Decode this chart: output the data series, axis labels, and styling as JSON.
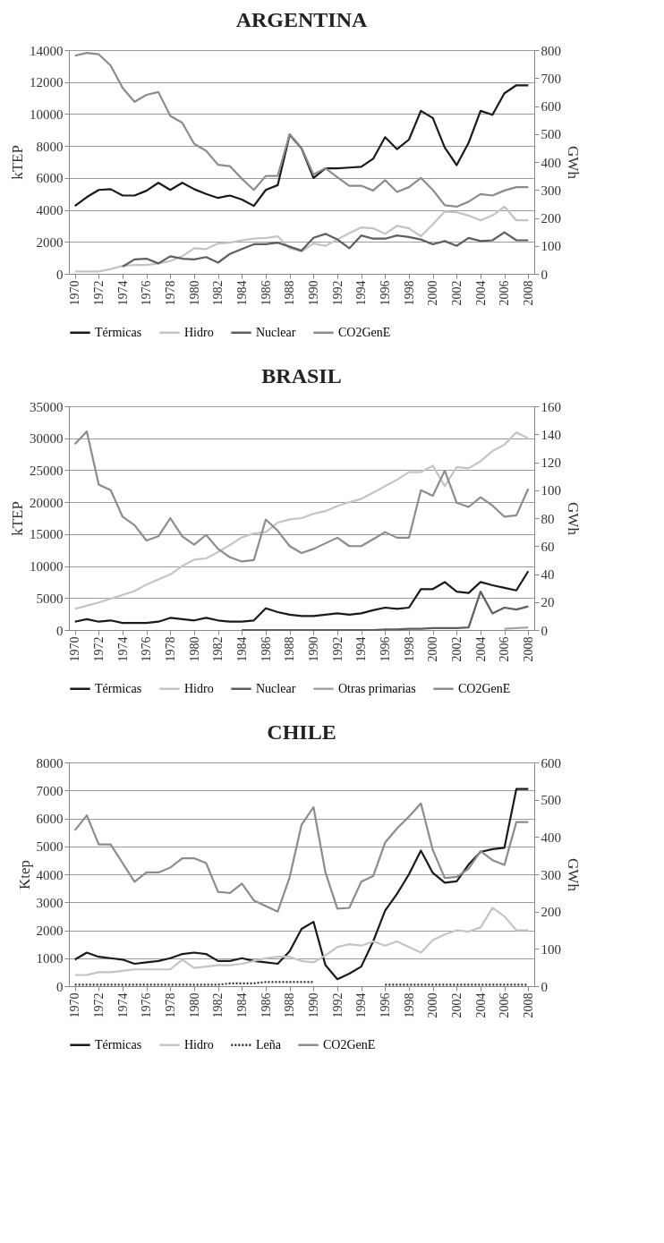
{
  "chart_data": [
    {
      "type": "line",
      "title": "ARGENTINA",
      "ylabel": "kTEP",
      "y2label": "GWh",
      "legend": "bottom",
      "grid": "y",
      "line_style": "solid",
      "x": [
        1970,
        1971,
        1972,
        1973,
        1974,
        1975,
        1976,
        1977,
        1978,
        1979,
        1980,
        1981,
        1982,
        1983,
        1984,
        1985,
        1986,
        1987,
        1988,
        1989,
        1990,
        1991,
        1992,
        1993,
        1994,
        1995,
        1996,
        1997,
        1998,
        1999,
        2000,
        2001,
        2002,
        2003,
        2004,
        2005,
        2006,
        2007,
        2008
      ],
      "xlim": [
        1969.5,
        2008.5
      ],
      "xticks": [
        1970,
        1972,
        1974,
        1976,
        1978,
        1980,
        1982,
        1984,
        1986,
        1988,
        1990,
        1992,
        1994,
        1996,
        1998,
        2000,
        2002,
        2004,
        2006,
        2008
      ],
      "ylim": [
        0,
        14000
      ],
      "yticks": [
        0,
        2000,
        4000,
        6000,
        8000,
        10000,
        12000,
        14000
      ],
      "y2lim": [
        0,
        800
      ],
      "y2ticks": [
        0,
        100,
        200,
        300,
        400,
        500,
        600,
        700,
        800
      ],
      "series": [
        {
          "name": "Térmicas",
          "color": "#1a1a1a",
          "values": [
            4250,
            4800,
            5250,
            5300,
            4900,
            4900,
            5200,
            5700,
            5250,
            5700,
            5300,
            5000,
            4750,
            4900,
            4650,
            4250,
            5250,
            5550,
            8700,
            7850,
            6000,
            6600,
            6600,
            6650,
            6700,
            7200,
            8550,
            7800,
            8400,
            10200,
            9750,
            7900,
            6800,
            8200,
            10200,
            9950,
            11300,
            11800,
            11800
          ]
        },
        {
          "name": "Hidro",
          "color": "#c4c4c4",
          "values": [
            150,
            150,
            150,
            300,
            500,
            550,
            550,
            650,
            800,
            1100,
            1600,
            1550,
            1900,
            1950,
            2100,
            2200,
            2250,
            2350,
            1600,
            1400,
            1900,
            1750,
            2150,
            2550,
            2900,
            2850,
            2500,
            3000,
            2850,
            2350,
            3100,
            3900,
            3850,
            3650,
            3350,
            3650,
            4200,
            3350,
            3350
          ]
        },
        {
          "name": "Nuclear",
          "color": "#5e5e5e",
          "values": [
            null,
            null,
            null,
            null,
            450,
            900,
            950,
            650,
            1100,
            950,
            900,
            1050,
            700,
            1250,
            1550,
            1850,
            1850,
            1950,
            1700,
            1450,
            2250,
            2500,
            2150,
            1600,
            2400,
            2200,
            2200,
            2400,
            2300,
            2150,
            1850,
            2050,
            1750,
            2250,
            2050,
            2100,
            2600,
            2100,
            2100
          ]
        },
        {
          "name": "CO2GenE",
          "color": "#8c8c8c",
          "axis": "y2",
          "values": [
            780,
            790,
            785,
            745,
            665,
            615,
            640,
            650,
            565,
            540,
            465,
            440,
            390,
            385,
            340,
            300,
            350,
            350,
            500,
            450,
            355,
            378,
            345,
            315,
            315,
            298,
            335,
            293,
            310,
            343,
            300,
            245,
            240,
            258,
            285,
            280,
            298,
            310,
            310
          ]
        }
      ]
    },
    {
      "type": "line",
      "title": "BRASIL",
      "ylabel": "kTEP",
      "y2label": "GWh",
      "legend": "bottom",
      "grid": "y",
      "line_style": "solid",
      "x": [
        1970,
        1971,
        1972,
        1973,
        1974,
        1975,
        1976,
        1977,
        1978,
        1979,
        1980,
        1981,
        1982,
        1983,
        1984,
        1985,
        1986,
        1987,
        1988,
        1989,
        1990,
        1991,
        1992,
        1993,
        1994,
        1995,
        1996,
        1997,
        1998,
        1999,
        2000,
        2001,
        2002,
        2003,
        2004,
        2005,
        2006,
        2007,
        2008
      ],
      "xlim": [
        1969.5,
        2008.5
      ],
      "xticks": [
        1970,
        1972,
        1974,
        1976,
        1978,
        1980,
        1982,
        1984,
        1986,
        1988,
        1990,
        1992,
        1994,
        1996,
        1998,
        2000,
        2002,
        2004,
        2006,
        2008
      ],
      "ylim": [
        0,
        35000
      ],
      "yticks": [
        0,
        5000,
        10000,
        15000,
        20000,
        25000,
        30000,
        35000
      ],
      "y2lim": [
        0,
        160
      ],
      "y2ticks": [
        0,
        20,
        40,
        60,
        80,
        100,
        120,
        140,
        160
      ],
      "series": [
        {
          "name": "Térmicas",
          "color": "#1a1a1a",
          "values": [
            1300,
            1700,
            1300,
            1500,
            1100,
            1100,
            1100,
            1300,
            1900,
            1700,
            1500,
            1900,
            1500,
            1300,
            1300,
            1500,
            3400,
            2800,
            2400,
            2200,
            2200,
            2400,
            2600,
            2400,
            2600,
            3100,
            3500,
            3300,
            3500,
            6400,
            6400,
            7500,
            6000,
            5800,
            7500,
            7000,
            6600,
            6200,
            9200
          ]
        },
        {
          "name": "Hidro",
          "color": "#c4c4c4",
          "values": [
            3300,
            3800,
            4300,
            4900,
            5500,
            6100,
            7100,
            7900,
            8700,
            10000,
            11000,
            11200,
            12200,
            13300,
            14500,
            15100,
            15300,
            16800,
            17300,
            17500,
            18200,
            18600,
            19400,
            20000,
            20500,
            21500,
            22500,
            23500,
            24700,
            24700,
            25700,
            22500,
            25500,
            25300,
            26400,
            28000,
            29000,
            30900,
            30000
          ]
        },
        {
          "name": "Nuclear",
          "color": "#5e5e5e",
          "values": [
            null,
            null,
            null,
            null,
            null,
            null,
            null,
            null,
            null,
            null,
            null,
            null,
            null,
            null,
            0,
            0,
            0,
            0,
            0,
            0,
            0,
            0,
            0,
            0,
            0,
            0,
            100,
            100,
            200,
            200,
            300,
            300,
            300,
            400,
            6000,
            2600,
            3500,
            3200,
            3700
          ]
        },
        {
          "name": "Otras primarias",
          "color": "#a6a6a6",
          "values": [
            null,
            null,
            null,
            null,
            null,
            null,
            null,
            null,
            null,
            null,
            null,
            null,
            null,
            null,
            null,
            null,
            null,
            null,
            null,
            null,
            null,
            null,
            null,
            null,
            null,
            null,
            null,
            null,
            null,
            null,
            null,
            null,
            null,
            null,
            null,
            null,
            200,
            300,
            400
          ]
        },
        {
          "name": "CO2GenE",
          "color": "#8c8c8c",
          "axis": "y2",
          "values": [
            133,
            142,
            104,
            100,
            81,
            75,
            64,
            67,
            80,
            67,
            61,
            68,
            58,
            52,
            49,
            50,
            79,
            71,
            60,
            55,
            58,
            62,
            66,
            60,
            60,
            65,
            70,
            66,
            66,
            100,
            96,
            114,
            91,
            88,
            95,
            89,
            81,
            82,
            101
          ]
        }
      ]
    },
    {
      "type": "line",
      "title": "CHILE",
      "ylabel": "Ktep",
      "y2label": "GWh",
      "legend": "bottom",
      "grid": "y",
      "line_style": "solid",
      "x": [
        1970,
        1971,
        1972,
        1973,
        1974,
        1975,
        1976,
        1977,
        1978,
        1979,
        1980,
        1981,
        1982,
        1983,
        1984,
        1985,
        1986,
        1987,
        1988,
        1989,
        1990,
        1991,
        1992,
        1993,
        1994,
        1995,
        1996,
        1997,
        1998,
        1999,
        2000,
        2001,
        2002,
        2003,
        2004,
        2005,
        2006,
        2007,
        2008
      ],
      "xlim": [
        1969.5,
        2008.5
      ],
      "xticks": [
        1970,
        1972,
        1974,
        1976,
        1978,
        1980,
        1982,
        1984,
        1986,
        1988,
        1990,
        1992,
        1994,
        1996,
        1998,
        2000,
        2002,
        2004,
        2006,
        2008
      ],
      "ylim": [
        0,
        8000
      ],
      "yticks": [
        0,
        1000,
        2000,
        3000,
        4000,
        5000,
        6000,
        7000,
        8000
      ],
      "y2lim": [
        0,
        600
      ],
      "y2ticks": [
        0,
        100,
        200,
        300,
        400,
        500,
        600
      ],
      "series": [
        {
          "name": "Térmicas",
          "color": "#1a1a1a",
          "values": [
            950,
            1200,
            1050,
            1000,
            950,
            800,
            850,
            900,
            1000,
            1150,
            1200,
            1150,
            900,
            900,
            1000,
            900,
            850,
            800,
            1250,
            2050,
            2300,
            750,
            250,
            450,
            700,
            1600,
            2700,
            3300,
            4000,
            4850,
            4050,
            3700,
            3750,
            4350,
            4800,
            4900,
            4950,
            7050,
            7050
          ]
        },
        {
          "name": "Hidro",
          "color": "#c4c4c4",
          "values": [
            400,
            400,
            500,
            500,
            550,
            600,
            600,
            600,
            600,
            950,
            650,
            700,
            750,
            750,
            800,
            900,
            1000,
            1050,
            1050,
            900,
            850,
            1100,
            1400,
            1500,
            1450,
            1600,
            1450,
            1600,
            1400,
            1200,
            1650,
            1850,
            2000,
            1950,
            2100,
            2800,
            2500,
            2000,
            2000
          ]
        },
        {
          "name": "Leña",
          "color": "#333333",
          "line_style": "dotted",
          "values": [
            50,
            50,
            50,
            50,
            50,
            50,
            50,
            50,
            50,
            50,
            50,
            50,
            50,
            100,
            100,
            100,
            150,
            150,
            150,
            150,
            150,
            null,
            null,
            null,
            null,
            null,
            50,
            50,
            50,
            50,
            50,
            50,
            50,
            50,
            50,
            50,
            50,
            50,
            50
          ]
        },
        {
          "name": "CO2GenE",
          "color": "#8c8c8c",
          "axis": "y2",
          "values": [
            418,
            458,
            380,
            380,
            330,
            280,
            305,
            305,
            318,
            343,
            343,
            330,
            253,
            250,
            275,
            230,
            215,
            200,
            292,
            433,
            480,
            305,
            208,
            210,
            280,
            295,
            385,
            423,
            455,
            490,
            365,
            290,
            293,
            315,
            362,
            338,
            325,
            440,
            440
          ]
        }
      ]
    }
  ]
}
